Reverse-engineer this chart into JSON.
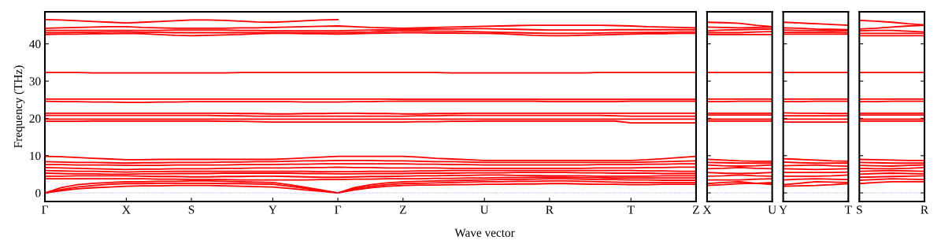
{
  "chart_data": [
    {
      "type": "line",
      "xlabel": "Wave vector",
      "ylabel": "Frequency (THz)",
      "grid": false,
      "line_style": "solid",
      "marker": "none",
      "categories": [
        "Γ",
        null,
        null,
        null,
        null,
        "X",
        null,
        null,
        null,
        "S",
        null,
        null,
        null,
        null,
        "Y",
        null,
        null,
        null,
        "Γ",
        null,
        null,
        null,
        "Z",
        null,
        null,
        null,
        null,
        "U",
        null,
        null,
        null,
        "R",
        null,
        null,
        null,
        null,
        "T",
        null,
        null,
        null,
        "Z"
      ],
      "ylim": [
        -2.3,
        48.6
      ],
      "yticks": [
        0,
        10,
        20,
        30,
        40
      ],
      "ref_lines": [
        {
          "axis": "y",
          "value": 0,
          "color": "#7f7fff",
          "line_style": "dotted"
        }
      ],
      "series": [
        {
          "color": "#ff0000",
          "values": [
            0,
            0.6,
            1.1,
            1.4,
            1.6,
            1.8,
            1.9,
            1.9,
            2.0,
            2.0,
            2.0,
            1.9,
            1.8,
            1.7,
            1.6,
            1.2,
            0.8,
            0.4,
            0,
            0.8,
            1.4,
            1.8,
            2.0,
            2.1,
            2.1,
            2.2,
            2.2,
            2.3,
            2.3,
            2.4,
            2.4,
            2.5,
            2.5,
            2.4,
            2.3,
            2.3,
            2.2,
            2.2,
            2.3,
            2.3,
            2.3
          ]
        },
        {
          "color": "#ff0000",
          "values": [
            0,
            0.9,
            1.6,
            2.0,
            2.3,
            2.5,
            2.5,
            2.6,
            2.6,
            2.6,
            2.6,
            2.5,
            2.5,
            2.4,
            2.3,
            1.8,
            1.2,
            0.6,
            0,
            1.1,
            1.8,
            2.2,
            2.5,
            2.6,
            2.7,
            2.8,
            2.9,
            3.0,
            3.0,
            3.1,
            3.1,
            3.2,
            3.2,
            3.1,
            3.0,
            2.9,
            2.8,
            2.8,
            2.8,
            2.8,
            2.8
          ]
        },
        {
          "color": "#ff0000",
          "values": [
            0,
            1.4,
            2.2,
            2.6,
            2.8,
            3.0,
            3.0,
            3.1,
            3.1,
            3.2,
            3.2,
            3.1,
            3.0,
            2.9,
            2.8,
            2.2,
            1.5,
            0.8,
            0,
            1.4,
            2.2,
            2.7,
            3.0,
            3.1,
            3.2,
            3.3,
            3.4,
            3.5,
            3.6,
            3.6,
            3.7,
            3.8,
            3.8,
            3.7,
            3.6,
            3.6,
            3.5,
            3.5,
            3.4,
            3.4,
            3.4
          ]
        },
        {
          "color": "#ff0000",
          "values": [
            3.8,
            3.8,
            3.8,
            3.8,
            3.8,
            3.8,
            3.8,
            3.7,
            3.7,
            3.6,
            3.6,
            3.6,
            3.5,
            3.5,
            3.5,
            3.5,
            3.5,
            3.6,
            3.6,
            3.7,
            3.7,
            3.8,
            3.8,
            3.8,
            3.9,
            3.9,
            4.0,
            4.0,
            4.1,
            4.1,
            4.2,
            4.2,
            4.2,
            4.1,
            4.1,
            4.0,
            4.0,
            4.0,
            4.0,
            4.0,
            4.0
          ]
        },
        {
          "color": "#ff0000",
          "values": [
            4.5,
            4.5,
            4.6,
            4.6,
            4.6,
            4.6,
            4.5,
            4.4,
            4.4,
            4.3,
            4.3,
            4.4,
            4.4,
            4.5,
            4.5,
            4.4,
            4.3,
            4.2,
            4.2,
            4.3,
            4.4,
            4.4,
            4.5,
            4.6,
            4.6,
            4.7,
            4.7,
            4.8,
            4.8,
            4.7,
            4.7,
            4.6,
            4.6,
            4.6,
            4.5,
            4.5,
            4.5,
            4.5,
            4.6,
            4.6,
            4.6
          ]
        },
        {
          "color": "#ff0000",
          "values": [
            5.3,
            5.2,
            5.1,
            5.1,
            5.0,
            5.0,
            5.1,
            5.1,
            5.2,
            5.2,
            5.2,
            5.3,
            5.3,
            5.3,
            5.3,
            5.3,
            5.2,
            5.2,
            5.1,
            5.1,
            5.2,
            5.2,
            5.2,
            5.3,
            5.3,
            5.3,
            5.4,
            5.4,
            5.4,
            5.5,
            5.5,
            5.5,
            5.5,
            5.4,
            5.4,
            5.3,
            5.3,
            5.3,
            5.2,
            5.2,
            5.2
          ]
        },
        {
          "color": "#ff0000",
          "values": [
            6.0,
            5.9,
            5.8,
            5.8,
            5.7,
            5.6,
            5.7,
            5.7,
            5.8,
            5.8,
            5.8,
            5.8,
            5.8,
            5.8,
            5.8,
            5.8,
            5.8,
            5.7,
            5.7,
            5.7,
            5.8,
            5.8,
            5.8,
            5.9,
            5.9,
            6.0,
            6.0,
            6.0,
            6.0,
            6.0,
            6.0,
            6.0,
            6.0,
            6.0,
            6.0,
            6.0,
            6.0,
            5.9,
            5.9,
            5.8,
            5.8
          ]
        },
        {
          "color": "#ff0000",
          "values": [
            6.8,
            6.7,
            6.6,
            6.5,
            6.4,
            6.3,
            6.4,
            6.4,
            6.5,
            6.5,
            6.5,
            6.6,
            6.6,
            6.7,
            6.7,
            6.7,
            6.8,
            6.8,
            6.9,
            6.8,
            6.8,
            6.7,
            6.7,
            6.7,
            6.7,
            6.6,
            6.6,
            6.6,
            6.6,
            6.6,
            6.6,
            6.6,
            6.6,
            6.6,
            6.7,
            6.7,
            6.7,
            6.8,
            6.8,
            6.9,
            6.9
          ]
        },
        {
          "color": "#ff0000",
          "values": [
            7.6,
            7.6,
            7.5,
            7.5,
            7.5,
            7.4,
            7.4,
            7.4,
            7.5,
            7.5,
            7.5,
            7.5,
            7.6,
            7.6,
            7.6,
            7.7,
            7.7,
            7.8,
            7.8,
            7.8,
            7.8,
            7.8,
            7.8,
            7.7,
            7.7,
            7.6,
            7.6,
            7.5,
            7.5,
            7.5,
            7.5,
            7.5,
            7.5,
            7.5,
            7.6,
            7.6,
            7.6,
            7.7,
            7.7,
            7.8,
            7.8
          ]
        },
        {
          "color": "#ff0000",
          "values": [
            8.4,
            8.3,
            8.2,
            8.2,
            8.1,
            8.0,
            8.1,
            8.1,
            8.2,
            8.2,
            8.2,
            8.3,
            8.3,
            8.4,
            8.4,
            8.5,
            8.6,
            8.6,
            8.7,
            8.7,
            8.7,
            8.6,
            8.6,
            8.5,
            8.4,
            8.4,
            8.3,
            8.2,
            8.2,
            8.2,
            8.2,
            8.2,
            8.2,
            8.2,
            8.2,
            8.2,
            8.2,
            8.3,
            8.4,
            8.5,
            8.6
          ]
        },
        {
          "color": "#ff0000",
          "values": [
            9.8,
            9.7,
            9.5,
            9.3,
            9.1,
            8.9,
            8.9,
            9.0,
            9.0,
            9.0,
            9.0,
            9.0,
            9.0,
            9.0,
            9.0,
            9.2,
            9.4,
            9.6,
            9.8,
            9.8,
            9.8,
            9.8,
            9.8,
            9.6,
            9.3,
            9.1,
            8.9,
            8.7,
            8.7,
            8.7,
            8.7,
            8.7,
            8.7,
            8.7,
            8.7,
            8.7,
            8.7,
            8.9,
            9.2,
            9.5,
            9.8
          ]
        },
        {
          "color": "#ff0000",
          "values": [
            19.2,
            19.2,
            19.2,
            19.3,
            19.3,
            19.3,
            19.3,
            19.3,
            19.3,
            19.3,
            19.3,
            19.2,
            19.2,
            19.1,
            19.0,
            19.0,
            19.0,
            19.0,
            19.0,
            19.0,
            19.0,
            19.0,
            19.0,
            19.1,
            19.1,
            19.2,
            19.2,
            19.3,
            19.3,
            19.3,
            19.3,
            19.3,
            19.3,
            19.3,
            19.3,
            19.3,
            18.8,
            18.8,
            18.8,
            18.8,
            18.8
          ]
        },
        {
          "color": "#ff0000",
          "values": [
            19.8,
            19.8,
            19.8,
            19.8,
            19.8,
            19.8,
            19.8,
            19.8,
            19.8,
            19.8,
            19.8,
            19.8,
            19.8,
            19.8,
            19.8,
            19.8,
            19.8,
            19.8,
            19.8,
            19.8,
            19.8,
            19.8,
            19.8,
            19.8,
            19.8,
            19.8,
            19.8,
            19.8,
            19.8,
            19.8,
            19.8,
            19.8,
            19.8,
            19.8,
            19.8,
            19.8,
            19.8,
            19.8,
            19.8,
            19.8,
            19.8
          ]
        },
        {
          "color": "#ff0000",
          "values": [
            20.8,
            20.8,
            20.8,
            20.8,
            20.8,
            20.8,
            20.8,
            20.8,
            20.8,
            20.8,
            20.8,
            20.7,
            20.7,
            20.6,
            20.6,
            20.6,
            20.6,
            20.6,
            20.6,
            20.6,
            20.6,
            20.6,
            20.6,
            20.7,
            20.7,
            20.8,
            20.8,
            20.8,
            20.8,
            20.8,
            20.8,
            20.8,
            20.8,
            20.8,
            20.8,
            20.7,
            20.6,
            20.6,
            20.6,
            20.6,
            20.6
          ]
        },
        {
          "color": "#ff0000",
          "values": [
            21.4,
            21.4,
            21.4,
            21.4,
            21.4,
            21.4,
            21.4,
            21.4,
            21.4,
            21.4,
            21.4,
            21.4,
            21.3,
            21.3,
            21.2,
            21.2,
            21.3,
            21.3,
            21.4,
            21.4,
            21.3,
            21.3,
            21.2,
            21.2,
            21.3,
            21.3,
            21.4,
            21.4,
            21.4,
            21.4,
            21.4,
            21.4,
            21.4,
            21.4,
            21.4,
            21.4,
            21.4,
            21.4,
            21.4,
            21.4,
            21.4
          ]
        },
        {
          "color": "#ff0000",
          "values": [
            24.6,
            24.5,
            24.5,
            24.4,
            24.4,
            24.3,
            24.3,
            24.4,
            24.4,
            24.5,
            24.5,
            24.5,
            24.5,
            24.5,
            24.5,
            24.5,
            24.4,
            24.4,
            24.4,
            24.5,
            24.5,
            24.6,
            24.6,
            24.6,
            24.6,
            24.6,
            24.6,
            24.6,
            24.6,
            24.6,
            24.6,
            24.5,
            24.5,
            24.5,
            24.5,
            24.5,
            24.6,
            24.6,
            24.6,
            24.6,
            24.6
          ]
        },
        {
          "color": "#ff0000",
          "values": [
            25.2,
            25.2,
            25.2,
            25.2,
            25.2,
            25.2,
            25.2,
            25.2,
            25.2,
            25.2,
            25.2,
            25.2,
            25.2,
            25.2,
            25.2,
            25.2,
            25.2,
            25.2,
            25.2,
            25.2,
            25.2,
            25.2,
            25.1,
            25.1,
            25.1,
            25.1,
            25.1,
            25.1,
            25.1,
            25.1,
            25.1,
            25.1,
            25.1,
            25.1,
            25.1,
            25.1,
            25.1,
            25.1,
            25.1,
            25.1,
            25.1
          ]
        },
        {
          "color": "#ff0000",
          "values": [
            32.3,
            32.3,
            32.3,
            32.2,
            32.2,
            32.2,
            32.2,
            32.2,
            32.2,
            32.2,
            32.2,
            32.2,
            32.3,
            32.3,
            32.3,
            32.3,
            32.3,
            32.3,
            32.3,
            32.3,
            32.3,
            32.3,
            32.3,
            32.3,
            32.3,
            32.2,
            32.2,
            32.2,
            32.2,
            32.2,
            32.2,
            32.2,
            32.2,
            32.2,
            32.3,
            32.3,
            32.3,
            32.3,
            32.3,
            32.3,
            32.3
          ]
        },
        {
          "color": "#ff0000",
          "values": [
            42.5,
            42.6,
            42.6,
            42.7,
            42.7,
            42.8,
            42.7,
            42.5,
            42.3,
            42.2,
            42.3,
            42.4,
            42.5,
            42.7,
            42.8,
            42.8,
            42.7,
            42.7,
            42.6,
            42.7,
            42.8,
            42.9,
            43.0,
            43.0,
            42.9,
            42.9,
            42.8,
            42.8,
            42.7,
            42.5,
            42.3,
            42.2,
            42.2,
            42.3,
            42.4,
            42.5,
            42.6,
            42.7,
            42.7,
            42.8,
            42.8
          ]
        },
        {
          "color": "#ff0000",
          "values": [
            43.0,
            43.0,
            43.1,
            43.1,
            43.2,
            43.2,
            43.1,
            43.1,
            43.0,
            43.0,
            43.0,
            43.0,
            43.0,
            43.0,
            43.0,
            43.0,
            43.0,
            43.0,
            43.0,
            43.1,
            43.2,
            43.4,
            43.5,
            43.5,
            43.4,
            43.4,
            43.3,
            43.2,
            43.1,
            43.0,
            42.9,
            42.8,
            42.8,
            42.8,
            42.9,
            43.0,
            43.0,
            43.1,
            43.1,
            43.2,
            43.2
          ]
        },
        {
          "color": "#ff0000",
          "values": [
            43.6,
            43.6,
            43.6,
            43.6,
            43.6,
            43.6,
            43.6,
            43.6,
            43.7,
            43.7,
            43.7,
            43.7,
            43.6,
            43.6,
            43.5,
            43.5,
            43.5,
            43.5,
            43.5,
            43.6,
            43.7,
            43.8,
            43.9,
            43.9,
            44.0,
            44.0,
            44.1,
            44.1,
            44.0,
            43.9,
            43.8,
            43.7,
            43.7,
            43.7,
            43.7,
            43.8,
            43.8,
            43.8,
            43.8,
            43.8,
            43.8
          ]
        },
        {
          "color": "#ff0000",
          "values": [
            44.2,
            44.3,
            44.4,
            44.5,
            44.6,
            44.6,
            44.4,
            44.3,
            44.2,
            44.2,
            44.2,
            44.2,
            44.3,
            44.3,
            44.4,
            44.5,
            44.6,
            44.7,
            44.8,
            44.6,
            44.4,
            44.3,
            44.2,
            44.3,
            44.4,
            44.5,
            44.6,
            44.7,
            44.8,
            44.9,
            45.0,
            45.0,
            45.0,
            45.0,
            45.0,
            44.9,
            44.8,
            44.6,
            44.5,
            44.4,
            44.3
          ]
        },
        {
          "color": "#ff0000",
          "values": [
            46.5,
            46.4,
            46.2,
            46.0,
            45.8,
            45.6,
            45.8,
            46.0,
            46.2,
            46.4,
            46.4,
            46.3,
            46.1,
            45.9,
            45.8,
            46.0,
            46.2,
            46.4,
            46.5,
            null,
            null,
            null,
            null,
            null,
            null,
            null,
            null,
            null,
            null,
            null,
            null,
            null,
            null,
            null,
            null,
            null,
            null,
            null,
            null,
            null,
            null
          ]
        }
      ]
    },
    {
      "type": "line",
      "tick_labels": "x",
      "grid": false,
      "line_style": "solid",
      "marker": "none",
      "categories": [
        "X",
        null,
        null,
        null,
        "U"
      ],
      "ylim": [
        -2.3,
        48.6
      ],
      "ref_lines": [
        {
          "axis": "y",
          "value": 0,
          "color": "#7f7fff",
          "line_style": "dotted"
        }
      ],
      "series": [
        {
          "color": "#ff0000",
          "values": [
            2.0,
            2.2,
            2.5,
            2.6,
            2.8
          ]
        },
        {
          "color": "#ff0000",
          "values": [
            2.5,
            2.8,
            3.0,
            2.6,
            2.3
          ]
        },
        {
          "color": "#ff0000",
          "values": [
            3.5,
            3.5,
            3.5,
            3.7,
            3.8
          ]
        },
        {
          "color": "#ff0000",
          "values": [
            4.5,
            4.6,
            4.8,
            4.6,
            4.5
          ]
        },
        {
          "color": "#ff0000",
          "values": [
            5.5,
            5.3,
            5.2,
            5.3,
            5.5
          ]
        },
        {
          "color": "#ff0000",
          "values": [
            6.5,
            6.6,
            6.8,
            6.6,
            6.5
          ]
        },
        {
          "color": "#ff0000",
          "values": [
            7.5,
            7.3,
            7.2,
            7.3,
            7.5
          ]
        },
        {
          "color": "#ff0000",
          "values": [
            8.2,
            8.1,
            8.0,
            8.0,
            8.0
          ]
        },
        {
          "color": "#ff0000",
          "values": [
            9.0,
            8.8,
            8.6,
            8.5,
            8.5
          ]
        },
        {
          "color": "#ff0000",
          "values": [
            19.3,
            19.3,
            19.3,
            19.3,
            19.3
          ]
        },
        {
          "color": "#ff0000",
          "values": [
            19.8,
            19.8,
            19.8,
            19.8,
            19.8
          ]
        },
        {
          "color": "#ff0000",
          "values": [
            20.9,
            20.9,
            20.9,
            20.9,
            20.9
          ]
        },
        {
          "color": "#ff0000",
          "values": [
            21.4,
            21.4,
            21.4,
            21.4,
            21.4
          ]
        },
        {
          "color": "#ff0000",
          "values": [
            24.5,
            24.5,
            24.6,
            24.6,
            24.6
          ]
        },
        {
          "color": "#ff0000",
          "values": [
            25.2,
            25.2,
            25.2,
            25.2,
            25.2
          ]
        },
        {
          "color": "#ff0000",
          "values": [
            32.3,
            32.3,
            32.3,
            32.3,
            32.3
          ]
        },
        {
          "color": "#ff0000",
          "values": [
            42.5,
            42.5,
            42.5,
            42.5,
            42.5
          ]
        },
        {
          "color": "#ff0000",
          "values": [
            43.0,
            43.0,
            43.0,
            43.2,
            43.3
          ]
        },
        {
          "color": "#ff0000",
          "values": [
            43.5,
            43.7,
            43.8,
            43.9,
            44.0
          ]
        },
        {
          "color": "#ff0000",
          "values": [
            44.5,
            44.4,
            44.3,
            44.4,
            44.5
          ]
        },
        {
          "color": "#ff0000",
          "values": [
            45.8,
            45.7,
            45.5,
            45.0,
            44.6
          ]
        }
      ]
    },
    {
      "type": "line",
      "tick_labels": "x",
      "grid": false,
      "line_style": "solid",
      "marker": "none",
      "categories": [
        "Y",
        null,
        null,
        null,
        "T"
      ],
      "ylim": [
        -2.3,
        48.6
      ],
      "ref_lines": [
        {
          "axis": "y",
          "value": 0,
          "color": "#7f7fff",
          "line_style": "dotted"
        }
      ],
      "series": [
        {
          "color": "#ff0000",
          "values": [
            1.8,
            1.9,
            2.0,
            2.2,
            2.5
          ]
        },
        {
          "color": "#ff0000",
          "values": [
            2.2,
            2.6,
            3.0,
            2.9,
            2.8
          ]
        },
        {
          "color": "#ff0000",
          "values": [
            3.5,
            3.7,
            3.8,
            3.7,
            3.6
          ]
        },
        {
          "color": "#ff0000",
          "values": [
            4.5,
            4.5,
            4.5,
            4.6,
            4.8
          ]
        },
        {
          "color": "#ff0000",
          "values": [
            5.5,
            5.5,
            5.5,
            5.5,
            5.6
          ]
        },
        {
          "color": "#ff0000",
          "values": [
            6.5,
            6.4,
            6.3,
            6.4,
            6.5
          ]
        },
        {
          "color": "#ff0000",
          "values": [
            7.3,
            7.4,
            7.5,
            7.3,
            7.2
          ]
        },
        {
          "color": "#ff0000",
          "values": [
            8.3,
            8.1,
            8.0,
            8.0,
            8.0
          ]
        },
        {
          "color": "#ff0000",
          "values": [
            9.2,
            9.0,
            8.8,
            8.6,
            8.5
          ]
        },
        {
          "color": "#ff0000",
          "values": [
            19.0,
            19.0,
            19.0,
            19.0,
            19.0
          ]
        },
        {
          "color": "#ff0000",
          "values": [
            19.8,
            19.8,
            19.8,
            19.8,
            19.8
          ]
        },
        {
          "color": "#ff0000",
          "values": [
            20.7,
            20.7,
            20.7,
            20.7,
            20.7
          ]
        },
        {
          "color": "#ff0000",
          "values": [
            21.5,
            21.4,
            21.4,
            21.3,
            21.3
          ]
        },
        {
          "color": "#ff0000",
          "values": [
            24.5,
            24.5,
            24.6,
            24.6,
            24.6
          ]
        },
        {
          "color": "#ff0000",
          "values": [
            25.2,
            25.2,
            25.2,
            25.2,
            25.2
          ]
        },
        {
          "color": "#ff0000",
          "values": [
            32.3,
            32.3,
            32.3,
            32.3,
            32.3
          ]
        },
        {
          "color": "#ff0000",
          "values": [
            42.6,
            42.6,
            42.6,
            42.6,
            42.6
          ]
        },
        {
          "color": "#ff0000",
          "values": [
            43.1,
            43.1,
            43.1,
            43.1,
            43.0
          ]
        },
        {
          "color": "#ff0000",
          "values": [
            43.7,
            43.6,
            43.6,
            43.5,
            43.5
          ]
        },
        {
          "color": "#ff0000",
          "values": [
            44.3,
            44.2,
            44.0,
            43.9,
            43.8
          ]
        },
        {
          "color": "#ff0000",
          "values": [
            45.8,
            45.6,
            45.4,
            45.2,
            45.0
          ]
        }
      ]
    },
    {
      "type": "line",
      "tick_labels": "x",
      "grid": false,
      "line_style": "solid",
      "marker": "none",
      "categories": [
        "S",
        null,
        null,
        null,
        "R"
      ],
      "ylim": [
        -2.3,
        48.6
      ],
      "ref_lines": [
        {
          "axis": "y",
          "value": 0,
          "color": "#7f7fff",
          "line_style": "dotted"
        }
      ],
      "series": [
        {
          "color": "#ff0000",
          "values": [
            2.5,
            2.8,
            3.0,
            3.0,
            3.0
          ]
        },
        {
          "color": "#ff0000",
          "values": [
            3.4,
            3.6,
            3.8,
            3.7,
            3.6
          ]
        },
        {
          "color": "#ff0000",
          "values": [
            4.2,
            4.3,
            4.4,
            4.5,
            4.6
          ]
        },
        {
          "color": "#ff0000",
          "values": [
            5.0,
            5.2,
            5.3,
            5.2,
            5.1
          ]
        },
        {
          "color": "#ff0000",
          "values": [
            5.8,
            5.9,
            6.0,
            5.9,
            5.8
          ]
        },
        {
          "color": "#ff0000",
          "values": [
            6.6,
            6.5,
            6.5,
            6.6,
            6.8
          ]
        },
        {
          "color": "#ff0000",
          "values": [
            7.4,
            7.3,
            7.2,
            7.4,
            7.5
          ]
        },
        {
          "color": "#ff0000",
          "values": [
            8.2,
            8.1,
            8.0,
            8.0,
            8.0
          ]
        },
        {
          "color": "#ff0000",
          "values": [
            9.0,
            8.9,
            8.8,
            8.7,
            8.7
          ]
        },
        {
          "color": "#ff0000",
          "values": [
            19.3,
            19.3,
            19.3,
            19.3,
            19.3
          ]
        },
        {
          "color": "#ff0000",
          "values": [
            19.8,
            19.8,
            19.8,
            19.8,
            19.8
          ]
        },
        {
          "color": "#ff0000",
          "values": [
            20.9,
            20.9,
            20.9,
            20.9,
            20.9
          ]
        },
        {
          "color": "#ff0000",
          "values": [
            21.4,
            21.4,
            21.4,
            21.4,
            21.4
          ]
        },
        {
          "color": "#ff0000",
          "values": [
            24.5,
            24.5,
            24.6,
            24.6,
            24.6
          ]
        },
        {
          "color": "#ff0000",
          "values": [
            25.2,
            25.2,
            25.2,
            25.2,
            25.2
          ]
        },
        {
          "color": "#ff0000",
          "values": [
            32.3,
            32.3,
            32.3,
            32.3,
            32.3
          ]
        },
        {
          "color": "#ff0000",
          "values": [
            42.2,
            42.2,
            42.2,
            42.2,
            42.2
          ]
        },
        {
          "color": "#ff0000",
          "values": [
            42.8,
            42.8,
            42.8,
            42.8,
            42.8
          ]
        },
        {
          "color": "#ff0000",
          "values": [
            43.5,
            43.6,
            43.6,
            43.4,
            43.2
          ]
        },
        {
          "color": "#ff0000",
          "values": [
            44.0,
            44.2,
            44.5,
            44.8,
            45.0
          ]
        },
        {
          "color": "#ff0000",
          "values": [
            46.3,
            46.1,
            45.8,
            45.4,
            45.1
          ]
        }
      ]
    }
  ]
}
